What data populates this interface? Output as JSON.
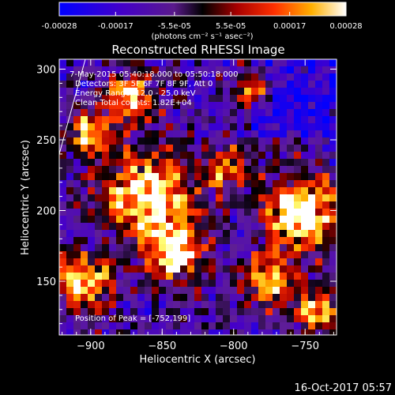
{
  "colorbar": {
    "tick_labels": [
      "-0.00028",
      "-0.00017",
      "-5.5e-05",
      "5.5e-05",
      "0.00017",
      "0.00028"
    ],
    "tick_values": [
      -0.00028,
      -0.00017,
      -5.5e-05,
      5.5e-05,
      0.00017,
      0.00028
    ],
    "range": [
      -0.00028,
      0.00028
    ],
    "units_label": "(photons cm⁻² s⁻¹ asec⁻²)",
    "colors": [
      "#0000ff",
      "#5a00b4",
      "#7a1aa0",
      "#000000",
      "#b40000",
      "#ff4000",
      "#ffb000",
      "#ffff80",
      "#ffffff"
    ]
  },
  "plot": {
    "title": "Reconstructed RHESSI Image",
    "xlabel": "Heliocentric X (arcsec)",
    "ylabel": "Heliocentric Y (arcsec)",
    "x_ticks": [
      -900,
      -850,
      -800,
      -750
    ],
    "x_tick_labels": [
      "−900",
      "−850",
      "−800",
      "−750"
    ],
    "y_ticks": [
      150,
      200,
      250,
      300
    ],
    "y_tick_labels": [
      "150",
      "200",
      "250",
      "300"
    ],
    "xlim": [
      -922,
      -728
    ],
    "ylim": [
      112,
      307
    ]
  },
  "annotations": {
    "time_range": "7-May-2015 05:40:18.000 to 05:50:18.000",
    "detectors": "Detectors: 3F 5F 6F 7F 8F 9F, Att 0",
    "energy": "Energy Range: 12.0 - 25.0 keV",
    "clean": "Clean    Total counts: 1.82E+04",
    "peak": "Position of Peak = [-752,199]"
  },
  "footer_date": "16-Oct-2017 05:57",
  "image_seed": 7,
  "hotspots": [
    {
      "x": -905,
      "y": 150,
      "r": 18,
      "a": 1.0
    },
    {
      "x": -872,
      "y": 280,
      "r": 16,
      "a": 0.9
    },
    {
      "x": -860,
      "y": 210,
      "r": 30,
      "a": 1.0
    },
    {
      "x": -840,
      "y": 170,
      "r": 20,
      "a": 0.9
    },
    {
      "x": -805,
      "y": 230,
      "r": 14,
      "a": 0.7
    },
    {
      "x": -785,
      "y": 285,
      "r": 12,
      "a": 0.8
    },
    {
      "x": -752,
      "y": 199,
      "r": 26,
      "a": 1.0
    },
    {
      "x": -740,
      "y": 130,
      "r": 14,
      "a": 0.8
    },
    {
      "x": -900,
      "y": 255,
      "r": 14,
      "a": 0.8
    },
    {
      "x": -775,
      "y": 150,
      "r": 18,
      "a": 0.8
    }
  ]
}
